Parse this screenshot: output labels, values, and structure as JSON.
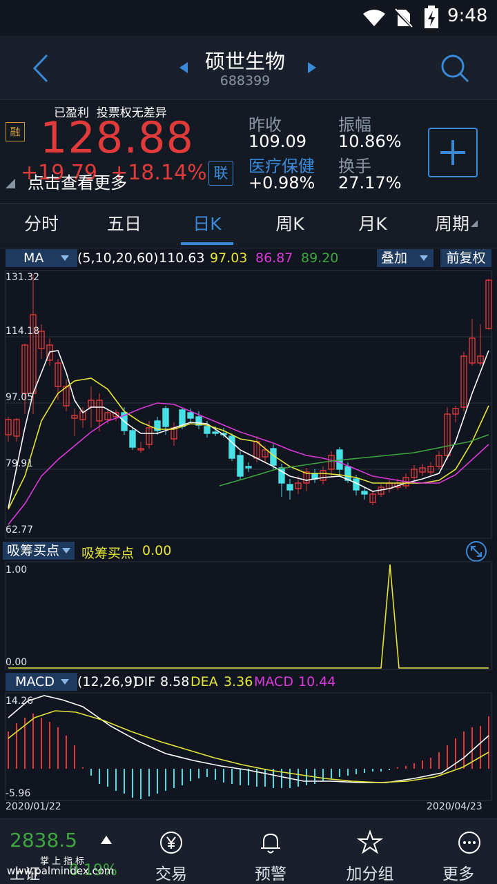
{
  "status": {
    "time": "9:48"
  },
  "header": {
    "title": "硕世生物",
    "code": "688399"
  },
  "quote": {
    "tags": "已盈利  投票权无差异",
    "rzrq_badge": "融",
    "price": "128.88",
    "change_hidden": "+19.79  +18.14%",
    "tap_more": "点击查看更多",
    "lian_badge": "联",
    "prev_close_label": "昨收",
    "prev_close": "109.09",
    "sector_label": "医疗保健",
    "sector_change": "+0.98%",
    "amplitude_label": "振幅",
    "amplitude": "10.86%",
    "turnover_label": "换手",
    "turnover": "27.17%"
  },
  "tabs": [
    "分时",
    "五日",
    "日K",
    "周K",
    "月K",
    "周期"
  ],
  "kline": {
    "indicator": "MA",
    "params": "(5,10,20,60)",
    "ma5": "110.63",
    "ma10": "97.03",
    "ma20": "86.87",
    "ma60": "89.20",
    "overlay_btn": "叠加",
    "adjust_btn": "前复权",
    "y_ticks": [
      "131.32",
      "114.18",
      "97.05",
      "79.91",
      "62.77"
    ]
  },
  "sub1": {
    "indicator": "吸筹买点",
    "label": "吸筹买点",
    "value": "0.00",
    "y_ticks": [
      "1.00",
      "0.00"
    ]
  },
  "macd": {
    "indicator": "MACD",
    "params": "(12,26,9)",
    "dif_label": "DIF",
    "dif": "8.58",
    "dea_label": "DEA",
    "dea": "3.36",
    "macd_label": "MACD",
    "macd": "10.44",
    "y_ticks": [
      "14.26",
      "-5.96"
    ],
    "date_start": "2020/01/22",
    "date_end": "2020/04/23"
  },
  "bottom": {
    "index_value": "2838.5",
    "index_name": "上证",
    "index_change": "0.19%",
    "watermark": "掌上指标",
    "watermark_url": "www.palmindex.com",
    "items": [
      "交易",
      "预警",
      "加分组",
      "更多"
    ]
  },
  "colors": {
    "up": "#e03a3a",
    "down": "#46e0e6",
    "ma5": "#ffffff",
    "ma10": "#e6e63a",
    "ma20": "#d93ad9",
    "ma60": "#3ea63e",
    "blue": "#3a8ad9"
  }
}
